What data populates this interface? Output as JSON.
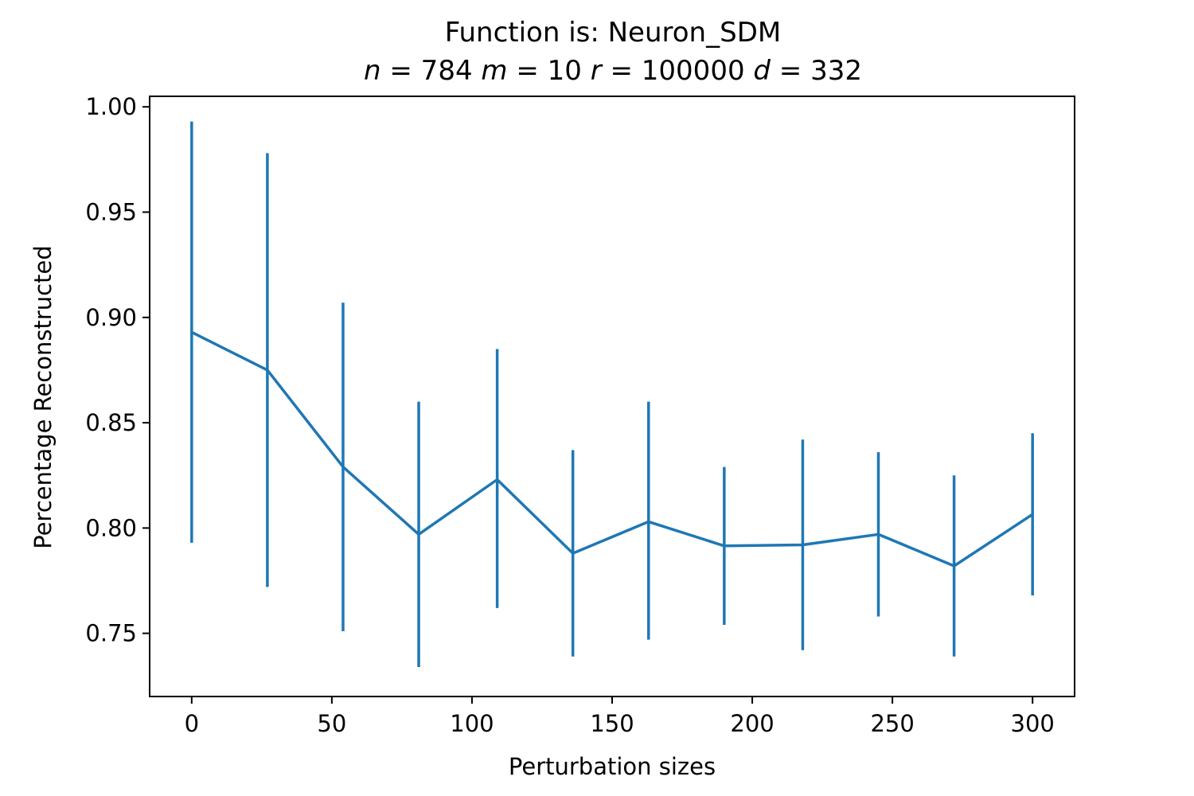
{
  "chart_data": {
    "type": "line",
    "title": "Function is: Neuron_SDM",
    "subtitle_params": [
      {
        "symbol": "n",
        "value": "784"
      },
      {
        "symbol": "m",
        "value": "10"
      },
      {
        "symbol": "r",
        "value": "100000"
      },
      {
        "symbol": "d",
        "value": "332"
      }
    ],
    "xlabel": "Perturbation sizes",
    "ylabel": "Percentage Reconstructed",
    "xlim": [
      -15,
      315
    ],
    "ylim": [
      0.72,
      1.005
    ],
    "xticks": [
      0,
      50,
      100,
      150,
      200,
      250,
      300
    ],
    "xtick_labels": [
      "0",
      "50",
      "100",
      "150",
      "200",
      "250",
      "300"
    ],
    "yticks": [
      0.75,
      0.8,
      0.85,
      0.9,
      0.95,
      1.0
    ],
    "ytick_labels": [
      "0.75",
      "0.80",
      "0.85",
      "0.90",
      "0.95",
      "1.00"
    ],
    "grid": false,
    "series": [
      {
        "color": "#1f77b4",
        "x": [
          0,
          27,
          54,
          81,
          109,
          136,
          163,
          190,
          218,
          245,
          272,
          300
        ],
        "y": [
          0.893,
          0.875,
          0.829,
          0.797,
          0.823,
          0.788,
          0.803,
          0.7915,
          0.792,
          0.797,
          0.782,
          0.8065
        ],
        "err_lower": [
          0.793,
          0.772,
          0.751,
          0.734,
          0.762,
          0.739,
          0.747,
          0.754,
          0.742,
          0.758,
          0.739,
          0.768
        ],
        "err_upper": [
          0.993,
          0.978,
          0.907,
          0.86,
          0.885,
          0.837,
          0.86,
          0.829,
          0.842,
          0.836,
          0.825,
          0.845
        ]
      }
    ]
  }
}
